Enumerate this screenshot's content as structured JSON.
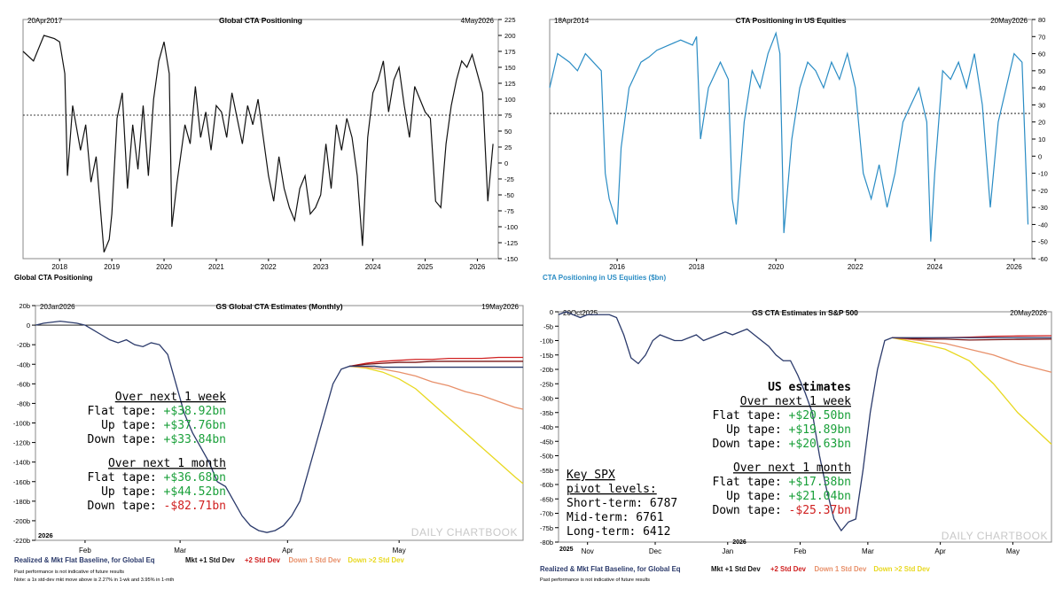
{
  "colors": {
    "black": "#111111",
    "blue": "#2a8cc4",
    "navy": "#2b3a6b",
    "darkred": "#7a1414",
    "red": "#d02020",
    "salmon": "#e8906a",
    "yellow": "#e8d820",
    "green": "#1aa03a",
    "grid": "#000000",
    "axis_blue": "#2a8cc4",
    "watermark": "#c8c8c8"
  },
  "watermark": "DAILY CHARTBOOK",
  "chart_data": [
    {
      "type": "line",
      "title": "Global CTA Positioning",
      "start_label": "20Apr2017",
      "end_label": "4May2026",
      "ylim": [
        -150,
        225
      ],
      "yticks": [
        "225",
        "200",
        "175",
        "150",
        "125",
        "100",
        "75",
        "50",
        "25",
        "0",
        "-25",
        "-50",
        "-75",
        "-100",
        "-125",
        "-150"
      ],
      "xticks": [
        "2018",
        "2019",
        "2020",
        "2021",
        "2022",
        "2023",
        "2024",
        "2025",
        "2026"
      ],
      "reference_line": 75,
      "legend": "Global CTA Positioning",
      "series": [
        {
          "name": "Global CTA Positioning",
          "x": [
            2017.3,
            2017.5,
            2017.7,
            2017.9,
            2018.0,
            2018.1,
            2018.15,
            2018.25,
            2018.4,
            2018.5,
            2018.6,
            2018.7,
            2018.8,
            2018.85,
            2018.95,
            2019.0,
            2019.1,
            2019.2,
            2019.3,
            2019.4,
            2019.5,
            2019.6,
            2019.7,
            2019.8,
            2019.9,
            2020.0,
            2020.1,
            2020.15,
            2020.25,
            2020.4,
            2020.5,
            2020.6,
            2020.7,
            2020.8,
            2020.9,
            2021.0,
            2021.1,
            2021.2,
            2021.3,
            2021.4,
            2021.5,
            2021.6,
            2021.7,
            2021.8,
            2021.9,
            2022.0,
            2022.1,
            2022.2,
            2022.3,
            2022.4,
            2022.5,
            2022.6,
            2022.7,
            2022.8,
            2022.9,
            2023.0,
            2023.1,
            2023.2,
            2023.3,
            2023.4,
            2023.5,
            2023.6,
            2023.7,
            2023.8,
            2023.9,
            2024.0,
            2024.1,
            2024.2,
            2024.3,
            2024.4,
            2024.5,
            2024.6,
            2024.7,
            2024.8,
            2024.9,
            2025.0,
            2025.1,
            2025.2,
            2025.3,
            2025.4,
            2025.5,
            2025.6,
            2025.7,
            2025.8,
            2025.9,
            2026.0,
            2026.1,
            2026.2,
            2026.3
          ],
          "values": [
            175,
            160,
            200,
            195,
            190,
            140,
            -20,
            90,
            20,
            60,
            -30,
            10,
            -90,
            -140,
            -120,
            -80,
            70,
            110,
            -40,
            60,
            -10,
            90,
            -20,
            100,
            160,
            190,
            140,
            -100,
            -30,
            60,
            30,
            120,
            40,
            80,
            20,
            90,
            80,
            40,
            110,
            70,
            30,
            90,
            60,
            100,
            40,
            -20,
            -60,
            10,
            -40,
            -70,
            -90,
            -40,
            -20,
            -80,
            -70,
            -50,
            30,
            -40,
            60,
            20,
            70,
            40,
            -20,
            -130,
            40,
            110,
            130,
            160,
            80,
            130,
            150,
            90,
            40,
            120,
            100,
            80,
            70,
            -60,
            -70,
            30,
            90,
            130,
            160,
            150,
            170,
            140,
            110,
            -60,
            30
          ]
        }
      ]
    },
    {
      "type": "line",
      "title": "CTA Positioning in US Equities",
      "start_label": "18Apr2014",
      "end_label": "20May2026",
      "ylim": [
        -60,
        80
      ],
      "yticks": [
        "80",
        "70",
        "60",
        "50",
        "40",
        "30",
        "20",
        "10",
        "0",
        "-10",
        "-20",
        "-30",
        "-40",
        "-50",
        "-60"
      ],
      "xticks": [
        "2016",
        "2018",
        "2020",
        "2022",
        "2024",
        "2026"
      ],
      "reference_line": 25,
      "legend": "CTA Positioning in US Equities ($bn)",
      "series": [
        {
          "name": "CTA Positioning in US Equities ($bn)",
          "x": [
            2014.3,
            2014.5,
            2014.8,
            2015.0,
            2015.2,
            2015.4,
            2015.6,
            2015.7,
            2015.8,
            2016.0,
            2016.1,
            2016.3,
            2016.6,
            2016.8,
            2017.0,
            2017.3,
            2017.6,
            2017.9,
            2018.0,
            2018.1,
            2018.3,
            2018.6,
            2018.8,
            2018.9,
            2019.0,
            2019.2,
            2019.4,
            2019.6,
            2019.8,
            2020.0,
            2020.1,
            2020.2,
            2020.4,
            2020.6,
            2020.8,
            2021.0,
            2021.2,
            2021.4,
            2021.6,
            2021.8,
            2022.0,
            2022.2,
            2022.4,
            2022.6,
            2022.8,
            2023.0,
            2023.2,
            2023.4,
            2023.6,
            2023.8,
            2023.9,
            2024.0,
            2024.2,
            2024.4,
            2024.6,
            2024.8,
            2025.0,
            2025.2,
            2025.4,
            2025.6,
            2025.8,
            2026.0,
            2026.2,
            2026.35
          ],
          "values": [
            40,
            60,
            55,
            50,
            60,
            55,
            50,
            -10,
            -25,
            -40,
            5,
            40,
            55,
            58,
            62,
            65,
            68,
            65,
            70,
            10,
            40,
            55,
            45,
            -25,
            -40,
            20,
            50,
            40,
            60,
            72,
            60,
            -45,
            10,
            40,
            55,
            50,
            40,
            55,
            45,
            60,
            40,
            -10,
            -25,
            -5,
            -30,
            -10,
            20,
            30,
            40,
            20,
            -50,
            -10,
            50,
            45,
            55,
            40,
            60,
            30,
            -30,
            20,
            40,
            60,
            55,
            -40
          ]
        }
      ]
    },
    {
      "type": "line",
      "title": "GS Global CTA Estimates (Monthly)",
      "start_label": "20Jan2026",
      "end_label": "19May2026",
      "ylim": [
        -220,
        20
      ],
      "yticks": [
        "20b",
        "0",
        "-20b",
        "-40b",
        "-60b",
        "-80b",
        "-100b",
        "-120b",
        "-140b",
        "-160b",
        "-180b",
        "-200b",
        "-220b"
      ],
      "xticks": [
        "Feb",
        "Mar",
        "Apr",
        "May"
      ],
      "year_label": "2026",
      "legend": [
        "Realized & Mkt Flat Baseline, for Global Eq",
        "Mkt +1 Std Dev",
        "+2 Std Dev",
        "Down 1 Std Dev",
        "Down >2 Std Dev"
      ],
      "footnotes": [
        "Past performance is not indicative of future results",
        "Note: a 1x std-dev mkt move above is 2.27% in 1-wk and 3.95% in 1-mth"
      ],
      "series": [
        {
          "name": "Realized & Mkt Flat Baseline, for Global Eq",
          "x": [
            0,
            2,
            4,
            6,
            8,
            10,
            12,
            14,
            16,
            18,
            20,
            22,
            24,
            26,
            28,
            30,
            32,
            34,
            36,
            38,
            40,
            42,
            44,
            46,
            48,
            50,
            52,
            54,
            56,
            58,
            60,
            62,
            64,
            66,
            68,
            70,
            72,
            74,
            76,
            78,
            80,
            82,
            84,
            86,
            88,
            90,
            92,
            94,
            96,
            98,
            100,
            102,
            104,
            106,
            108,
            110,
            112,
            114,
            116,
            118
          ],
          "values": [
            0,
            2,
            3,
            4,
            3,
            2,
            0,
            -5,
            -10,
            -15,
            -18,
            -15,
            -20,
            -22,
            -18,
            -20,
            -30,
            -60,
            -90,
            -110,
            -125,
            -140,
            -160,
            -165,
            -180,
            -195,
            -205,
            -210,
            -212,
            -210,
            -205,
            -195,
            -180,
            -150,
            -120,
            -90,
            -60,
            -45,
            -42,
            -42,
            -42,
            -42,
            -43,
            -43,
            -43,
            -43,
            -43,
            -43,
            -43,
            -43,
            -43,
            -43,
            -43,
            -43,
            -43,
            -43,
            -43,
            -43,
            -43,
            -43
          ]
        },
        {
          "name": "Mkt +1 Std Dev",
          "x": [
            76,
            80,
            84,
            88,
            92,
            96,
            100,
            104,
            108,
            112,
            116,
            118
          ],
          "values": [
            -42,
            -40,
            -39,
            -38,
            -38,
            -37,
            -37,
            -37,
            -37,
            -37,
            -37,
            -37
          ]
        },
        {
          "name": "+2 Std Dev",
          "x": [
            76,
            80,
            84,
            88,
            92,
            96,
            100,
            104,
            108,
            112,
            116,
            118
          ],
          "values": [
            -42,
            -39,
            -37,
            -36,
            -35,
            -35,
            -34,
            -34,
            -34,
            -33,
            -33,
            -33
          ]
        },
        {
          "name": "Down 1 Std Dev",
          "x": [
            76,
            80,
            84,
            88,
            92,
            96,
            100,
            104,
            108,
            112,
            116,
            118
          ],
          "values": [
            -42,
            -43,
            -45,
            -48,
            -52,
            -58,
            -62,
            -68,
            -72,
            -78,
            -84,
            -86
          ]
        },
        {
          "name": "Down >2 Std Dev",
          "x": [
            76,
            80,
            84,
            88,
            92,
            96,
            100,
            104,
            108,
            112,
            116,
            118
          ],
          "values": [
            -42,
            -44,
            -48,
            -55,
            -65,
            -80,
            -95,
            -110,
            -125,
            -140,
            -155,
            -162
          ]
        }
      ],
      "annotation": {
        "week_header": "Over next 1 week",
        "week_rows": [
          [
            "Flat tape:",
            "+$38.92bn",
            "green"
          ],
          [
            "Up tape:",
            "+$37.76bn",
            "green"
          ],
          [
            "Down tape:",
            "+$33.84bn",
            "green"
          ]
        ],
        "month_header": "Over next 1 month",
        "month_rows": [
          [
            "Flat tape:",
            "+$36.68bn",
            "green"
          ],
          [
            "Up tape:",
            "+$44.52bn",
            "green"
          ],
          [
            "Down tape:",
            "-$82.71bn",
            "red"
          ]
        ]
      }
    },
    {
      "type": "line",
      "title": "GS CTA Estimates in S&P 500",
      "start_label": "20Oct2025",
      "end_label": "20May2026",
      "ylim": [
        -80,
        0
      ],
      "yticks": [
        "0",
        "-5b",
        "-10b",
        "-15b",
        "-20b",
        "-25b",
        "-30b",
        "-35b",
        "-40b",
        "-45b",
        "-50b",
        "-55b",
        "-60b",
        "-65b",
        "-70b",
        "-75b",
        "-80b"
      ],
      "xticks": [
        "Nov",
        "Dec",
        "Jan",
        "Feb",
        "Mar",
        "Apr",
        "May"
      ],
      "year_labels": [
        "2025",
        "2026"
      ],
      "legend": [
        "Realized & Mkt Flat Baseline, for Global Eq",
        "Mkt +1 Std Dev",
        "+2 Std Dev",
        "Down 1 Std Dev",
        "Down >2 Std Dev"
      ],
      "footnotes": [
        "Past performance is not indicative of future results"
      ],
      "series": [
        {
          "name": "Realized & Mkt Flat Baseline, for Global Eq",
          "x": [
            0,
            3,
            6,
            9,
            12,
            15,
            18,
            21,
            24,
            27,
            30,
            33,
            36,
            39,
            42,
            45,
            48,
            51,
            54,
            57,
            60,
            63,
            66,
            69,
            72,
            75,
            78,
            81,
            84,
            87,
            90,
            93,
            96,
            99,
            102,
            105,
            108,
            111,
            114,
            117,
            120,
            123,
            126,
            129,
            132,
            135,
            138,
            141,
            144,
            147,
            150,
            153,
            156,
            159,
            162,
            165,
            168,
            171,
            174,
            177,
            180,
            183,
            186,
            189,
            192,
            195,
            198,
            201,
            204
          ],
          "values": [
            -1,
            0,
            -1,
            -2,
            -1,
            -1,
            -1,
            -1,
            -2,
            -8,
            -16,
            -18,
            -15,
            -10,
            -8,
            -9,
            -10,
            -10,
            -9,
            -8,
            -10,
            -9,
            -8,
            -7,
            -8,
            -7,
            -6,
            -8,
            -10,
            -12,
            -15,
            -17,
            -17,
            -22,
            -28,
            -35,
            -50,
            -62,
            -72,
            -76,
            -73,
            -72,
            -55,
            -35,
            -20,
            -10,
            -9,
            -9,
            -9,
            -9,
            -9,
            -9,
            -9,
            -9,
            -9,
            -9,
            -9,
            -9,
            -9,
            -9,
            -9,
            -9,
            -9,
            -9,
            -9,
            -9,
            -9,
            -9,
            -9
          ]
        },
        {
          "name": "Mkt +1 Std Dev",
          "x": [
            138,
            150,
            160,
            170,
            180,
            190,
            204
          ],
          "values": [
            -9,
            -9.5,
            -9.5,
            -9.8,
            -9.7,
            -9.6,
            -9.5
          ]
        },
        {
          "name": "+2 Std Dev",
          "x": [
            138,
            150,
            160,
            170,
            180,
            190,
            204
          ],
          "values": [
            -9,
            -9.2,
            -9,
            -8.8,
            -8.5,
            -8.4,
            -8.3
          ]
        },
        {
          "name": "Down 1 Std Dev",
          "x": [
            138,
            150,
            160,
            170,
            180,
            190,
            204
          ],
          "values": [
            -9,
            -10,
            -11,
            -13,
            -15,
            -18,
            -21
          ]
        },
        {
          "name": "Down >2 Std Dev",
          "x": [
            138,
            150,
            160,
            170,
            180,
            190,
            204
          ],
          "values": [
            -9,
            -11,
            -13,
            -17,
            -25,
            -35,
            -46
          ]
        }
      ],
      "annotation": {
        "title": "US estimates",
        "week_header": "Over next 1 week",
        "week_rows": [
          [
            "Flat tape:",
            "+$20.50bn",
            "green"
          ],
          [
            "Up tape:",
            "+$19.89bn",
            "green"
          ],
          [
            "Down tape:",
            "+$20.63bn",
            "green"
          ]
        ],
        "month_header": "Over next 1 month",
        "month_rows": [
          [
            "Flat tape:",
            "+$17.38bn",
            "green"
          ],
          [
            "Up tape:",
            "+$21.04bn",
            "green"
          ],
          [
            "Down tape:",
            "-$25.37bn",
            "red"
          ]
        ],
        "pivot_header": [
          "Key SPX",
          "pivot levels:"
        ],
        "pivot_rows": [
          "Short-term: 6787",
          "Mid-term: 6761",
          "Long-term: 6412"
        ]
      }
    }
  ]
}
